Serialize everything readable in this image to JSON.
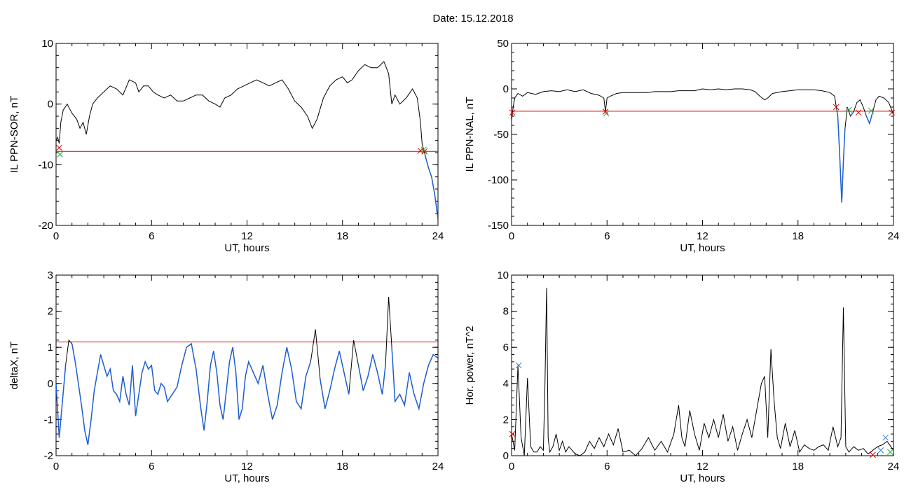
{
  "header": {
    "date_label": "Date:  15.12.2018"
  },
  "colors": {
    "line": "#000000",
    "threshold": "#e00000",
    "highlight": "#1f5fd6",
    "marker_red": "#e00000",
    "marker_green": "#20b040",
    "marker_blue": "#3a7bd5"
  },
  "chart_data": [
    {
      "id": "il-ppn-sor",
      "type": "line",
      "xlabel": "UT, hours",
      "ylabel": "IL PPN-SOR, nT",
      "xlim": [
        0,
        24
      ],
      "ylim": [
        -20,
        10
      ],
      "xticks": [
        0,
        6,
        12,
        18,
        24
      ],
      "yticks": [
        -20,
        -10,
        0,
        10
      ],
      "threshold": -7.8,
      "series": [
        {
          "x": [
            0,
            0.1,
            0.2,
            0.3,
            0.45,
            0.7,
            1.0,
            1.3,
            1.5,
            1.7,
            1.9,
            2.1,
            2.3,
            2.6,
            3.0,
            3.4,
            3.8,
            4.2,
            4.6,
            5.0,
            5.2,
            5.5,
            5.8,
            6.1,
            6.4,
            6.8,
            7.2,
            7.6,
            8.0,
            8.4,
            8.8,
            9.2,
            9.6,
            10.0,
            10.3,
            10.6,
            11.0,
            11.4,
            11.8,
            12.2,
            12.6,
            13.0,
            13.4,
            13.8,
            14.2,
            14.6,
            15.0,
            15.4,
            15.8,
            16.1,
            16.4,
            16.8,
            17.2,
            17.6,
            18.0,
            18.3,
            18.6,
            19.0,
            19.4,
            19.8,
            20.2,
            20.6,
            20.9,
            21.1,
            21.3,
            21.6,
            22.0,
            22.4,
            22.7,
            22.9,
            23.0,
            23.2,
            23.4,
            23.6,
            23.8,
            24.0
          ],
          "y": [
            -6,
            -5.5,
            -6.5,
            -3,
            -1,
            0,
            -1.5,
            -2.5,
            -4,
            -3,
            -5,
            -2,
            0,
            1,
            2,
            3,
            2.5,
            1.5,
            4,
            3.5,
            2,
            3,
            3,
            2,
            1.5,
            1,
            1.5,
            0.5,
            0.5,
            1,
            1.5,
            1.5,
            0.5,
            0,
            -0.5,
            1,
            1.5,
            2.5,
            3,
            3.5,
            4,
            3.5,
            3,
            3.5,
            4,
            2.5,
            0.5,
            -0.5,
            -2,
            -4,
            -2.5,
            1,
            3,
            4,
            4.5,
            3.5,
            4,
            5.5,
            6.5,
            6,
            6,
            7,
            5,
            0,
            1.5,
            0,
            1,
            2.5,
            1,
            -3,
            -6.5,
            -8.5,
            -10.5,
            -12,
            -15,
            -19
          ]
        }
      ],
      "markers": [
        {
          "x": 0.2,
          "y": -7.2,
          "color": "marker_red",
          "shape": "x"
        },
        {
          "x": 0.25,
          "y": -8.3,
          "color": "marker_green",
          "shape": "x"
        },
        {
          "x": 22.9,
          "y": -7.7,
          "color": "marker_red",
          "shape": "x"
        },
        {
          "x": 23.1,
          "y": -7.5,
          "color": "marker_green",
          "shape": "x"
        },
        {
          "x": 23.15,
          "y": -7.8,
          "color": "marker_red",
          "shape": "x"
        }
      ]
    },
    {
      "id": "il-ppn-nal",
      "type": "line",
      "xlabel": "UT, hours",
      "ylabel": "IL PPN-NAL, nT",
      "xlim": [
        0,
        24
      ],
      "ylim": [
        -150,
        50
      ],
      "xticks": [
        0,
        6,
        12,
        18,
        24
      ],
      "yticks": [
        -150,
        -100,
        -50,
        0,
        50
      ],
      "threshold": -24.5,
      "series": [
        {
          "x": [
            0,
            0.1,
            0.2,
            0.4,
            0.7,
            1.0,
            1.5,
            2.0,
            2.5,
            3.0,
            3.5,
            4.0,
            4.5,
            5.0,
            5.5,
            5.8,
            5.9,
            6.0,
            6.2,
            6.6,
            7.0,
            7.5,
            8.0,
            8.5,
            9.0,
            9.5,
            10.0,
            10.5,
            11.0,
            11.5,
            12.0,
            12.5,
            13.0,
            13.5,
            14.0,
            14.5,
            15.0,
            15.3,
            15.6,
            15.9,
            16.1,
            16.4,
            17.0,
            17.5,
            18.0,
            18.5,
            19.0,
            19.5,
            20.0,
            20.3,
            20.5,
            20.6,
            20.75,
            20.85,
            20.95,
            21.1,
            21.3,
            21.5,
            21.7,
            21.9,
            22.1,
            22.3,
            22.5,
            22.7,
            22.9,
            23.1,
            23.4,
            23.7,
            24.0
          ],
          "y": [
            -35,
            -20,
            -10,
            -5,
            -8,
            -4,
            -6,
            -3,
            -2,
            -3,
            -1,
            -3,
            -1,
            -5,
            -7,
            -10,
            -25,
            -10,
            -8,
            -5,
            -4,
            -4,
            -4,
            -4,
            -3,
            -3,
            -3,
            -2,
            -2,
            -2,
            0,
            -1,
            0,
            -1,
            0,
            0,
            -1,
            -3,
            -8,
            -12,
            -10,
            -5,
            -3,
            -2,
            -1,
            -1,
            -1,
            -2,
            -4,
            -8,
            -30,
            -65,
            -125,
            -80,
            -45,
            -20,
            -30,
            -25,
            -15,
            -12,
            -20,
            -30,
            -38,
            -25,
            -12,
            -8,
            -10,
            -15,
            -28
          ]
        }
      ],
      "markers": [
        {
          "x": 0.05,
          "y": -26,
          "color": "marker_red",
          "shape": "x"
        },
        {
          "x": 5.9,
          "y": -25,
          "color": "marker_red",
          "shape": "x"
        },
        {
          "x": 5.95,
          "y": -27,
          "color": "marker_green",
          "shape": "x"
        },
        {
          "x": 20.4,
          "y": -20,
          "color": "marker_red",
          "shape": "x"
        },
        {
          "x": 21.2,
          "y": -23,
          "color": "marker_green",
          "shape": "x"
        },
        {
          "x": 21.8,
          "y": -26,
          "color": "marker_red",
          "shape": "x"
        },
        {
          "x": 22.6,
          "y": -24,
          "color": "marker_green",
          "shape": "x"
        },
        {
          "x": 23.9,
          "y": -26,
          "color": "marker_red",
          "shape": "x"
        }
      ]
    },
    {
      "id": "delta-x",
      "type": "line",
      "xlabel": "UT, hours",
      "ylabel": "deltaX, nT",
      "xlim": [
        0,
        24
      ],
      "ylim": [
        -2,
        3
      ],
      "xticks": [
        0,
        6,
        12,
        18,
        24
      ],
      "yticks": [
        -2,
        -1,
        0,
        1,
        2,
        3
      ],
      "threshold": 1.15,
      "series": [
        {
          "x": [
            0,
            0.2,
            0.4,
            0.6,
            0.8,
            1.0,
            1.2,
            1.4,
            1.6,
            1.8,
            2.0,
            2.2,
            2.4,
            2.6,
            2.8,
            3.0,
            3.2,
            3.4,
            3.6,
            3.8,
            4.0,
            4.2,
            4.4,
            4.6,
            4.8,
            5.0,
            5.2,
            5.4,
            5.6,
            5.8,
            6.0,
            6.2,
            6.4,
            6.6,
            6.8,
            7.0,
            7.3,
            7.6,
            7.9,
            8.2,
            8.5,
            8.8,
            9.1,
            9.3,
            9.5,
            9.7,
            9.9,
            10.1,
            10.3,
            10.5,
            10.7,
            10.9,
            11.1,
            11.3,
            11.5,
            11.7,
            11.9,
            12.1,
            12.4,
            12.7,
            13.0,
            13.3,
            13.6,
            13.9,
            14.2,
            14.5,
            14.8,
            15.1,
            15.4,
            15.7,
            16.0,
            16.3,
            16.6,
            16.9,
            17.2,
            17.5,
            17.8,
            18.1,
            18.4,
            18.7,
            19.0,
            19.3,
            19.6,
            19.9,
            20.2,
            20.5,
            20.7,
            20.9,
            21.1,
            21.3,
            21.6,
            21.9,
            22.2,
            22.5,
            22.8,
            23.1,
            23.4,
            23.7,
            24.0
          ],
          "y": [
            0,
            -1.5,
            -0.5,
            0.5,
            1.2,
            1.1,
            0.6,
            0,
            -0.6,
            -1.3,
            -1.7,
            -1,
            -0.2,
            0.3,
            0.8,
            0.5,
            0.2,
            0.4,
            -0.2,
            -0.3,
            -0.5,
            0.2,
            -0.3,
            -0.6,
            0.5,
            -0.9,
            -0.3,
            0.3,
            0.6,
            0.4,
            0.5,
            -0.2,
            -0.3,
            0,
            -0.1,
            -0.5,
            -0.3,
            -0.1,
            0.5,
            1.0,
            1.1,
            0.4,
            -0.7,
            -1.3,
            -0.5,
            0.5,
            0.9,
            0.3,
            -0.6,
            -1.0,
            -0.2,
            0.6,
            1.0,
            0.3,
            -1.0,
            -0.7,
            0.2,
            0.6,
            0.3,
            0,
            0.5,
            -0.3,
            -1.0,
            -0.6,
            0.3,
            1.0,
            0.4,
            -0.5,
            -0.7,
            0.2,
            0.6,
            1.5,
            0.1,
            -0.7,
            -0.2,
            0.4,
            0.9,
            0.3,
            -0.3,
            1.2,
            0.5,
            -0.2,
            0.2,
            0.8,
            0.3,
            -0.3,
            0.5,
            2.4,
            1.0,
            -0.5,
            -0.3,
            -0.6,
            0.3,
            -0.3,
            -0.7,
            0,
            0.5,
            0.8,
            0.7
          ]
        }
      ],
      "markers": []
    },
    {
      "id": "hor-power",
      "type": "line",
      "xlabel": "UT, hours",
      "ylabel": "Hor. power, nT^2",
      "xlim": [
        0,
        24
      ],
      "ylim": [
        0,
        10
      ],
      "xticks": [
        0,
        6,
        12,
        18,
        24
      ],
      "yticks": [
        0,
        2,
        4,
        6,
        8,
        10
      ],
      "threshold": null,
      "series": [
        {
          "x": [
            0,
            0.2,
            0.4,
            0.6,
            0.8,
            1.0,
            1.2,
            1.4,
            1.6,
            1.8,
            2.0,
            2.1,
            2.2,
            2.3,
            2.4,
            2.6,
            2.8,
            3.0,
            3.2,
            3.4,
            3.6,
            3.8,
            4.0,
            4.3,
            4.6,
            4.9,
            5.2,
            5.5,
            5.8,
            6.1,
            6.4,
            6.7,
            7.0,
            7.4,
            7.8,
            8.2,
            8.6,
            9.0,
            9.4,
            9.8,
            10.2,
            10.5,
            10.7,
            10.9,
            11.2,
            11.5,
            11.8,
            12.1,
            12.4,
            12.7,
            13.0,
            13.3,
            13.6,
            13.9,
            14.2,
            14.5,
            14.8,
            15.1,
            15.4,
            15.7,
            15.9,
            16.1,
            16.3,
            16.5,
            16.7,
            16.9,
            17.2,
            17.5,
            17.8,
            18.1,
            18.4,
            18.7,
            19.0,
            19.3,
            19.6,
            19.9,
            20.2,
            20.5,
            20.7,
            20.85,
            21.0,
            21.2,
            21.5,
            21.8,
            22.1,
            22.4,
            22.7,
            23.0,
            23.3,
            23.6,
            24.0
          ],
          "y": [
            1.2,
            0.3,
            5,
            1,
            0,
            4.3,
            0.5,
            0.2,
            0.2,
            0.5,
            0.3,
            4,
            9.3,
            1,
            0.2,
            0.5,
            1.2,
            0.3,
            0.8,
            0.2,
            0.5,
            0.3,
            0.1,
            0,
            0.2,
            0.8,
            0.4,
            1,
            0.5,
            1.2,
            0.6,
            1.5,
            0.2,
            0.3,
            0,
            0.4,
            1,
            0.3,
            0.8,
            0.2,
            1.2,
            2.8,
            1,
            0.5,
            2.5,
            1.2,
            0.3,
            1.8,
            1,
            2,
            1,
            2.3,
            0.8,
            1.6,
            0.3,
            1.2,
            2,
            1,
            2.5,
            4,
            4.4,
            1,
            5.9,
            3,
            1,
            0.4,
            1.8,
            0.5,
            1.4,
            0.2,
            0.6,
            0.4,
            0.3,
            0.5,
            0.6,
            0.3,
            1.6,
            0.5,
            1,
            8.2,
            0.5,
            0.2,
            0.5,
            0.3,
            0.4,
            0.1,
            0.3,
            0.5,
            0.6,
            0.8,
            0.3
          ]
        }
      ],
      "markers": [
        {
          "x": 0.05,
          "y": 1.2,
          "color": "marker_red",
          "shape": "x"
        },
        {
          "x": 0.45,
          "y": 5.0,
          "color": "marker_blue",
          "shape": "x"
        },
        {
          "x": 22.7,
          "y": 0.05,
          "color": "marker_red",
          "shape": "x"
        },
        {
          "x": 23.2,
          "y": 0.3,
          "color": "marker_blue",
          "shape": "x"
        },
        {
          "x": 23.5,
          "y": 1.0,
          "color": "marker_blue",
          "shape": "x"
        },
        {
          "x": 23.8,
          "y": 0.2,
          "color": "marker_green",
          "shape": "x"
        }
      ]
    }
  ]
}
